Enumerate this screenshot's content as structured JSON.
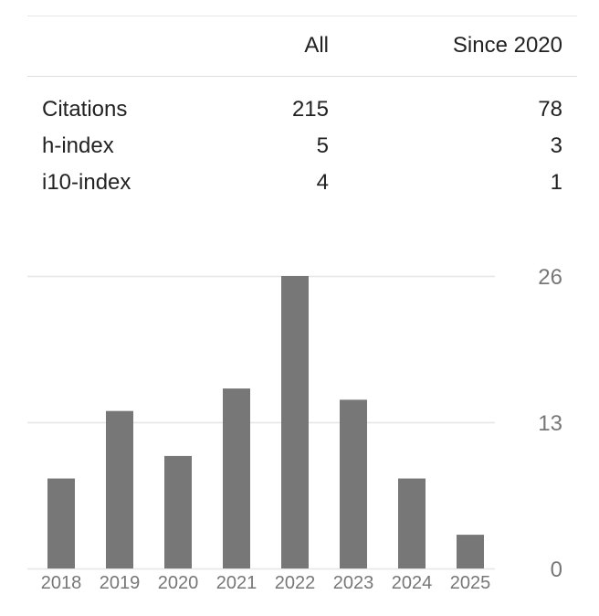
{
  "table": {
    "headers": [
      "",
      "All",
      "Since 2020"
    ],
    "rows": [
      {
        "label": "Citations",
        "all": "215",
        "since": "78"
      },
      {
        "label": "h-index",
        "all": "5",
        "since": "3"
      },
      {
        "label": "i10-index",
        "all": "4",
        "since": "1"
      }
    ]
  },
  "chart_data": {
    "type": "bar",
    "categories": [
      "2018",
      "2019",
      "2020",
      "2021",
      "2022",
      "2023",
      "2024",
      "2025"
    ],
    "values": [
      8,
      14,
      10,
      16,
      26,
      15,
      8,
      3
    ],
    "y_ticks": [
      0,
      13,
      26
    ],
    "ylim": [
      0,
      26
    ],
    "bar_color": "#777777",
    "grid_color": "#e6e6e6",
    "grid": true
  }
}
